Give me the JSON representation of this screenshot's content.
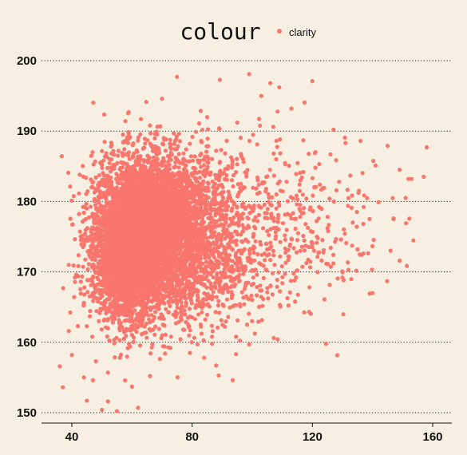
{
  "chart_data": {
    "type": "scatter",
    "title": "",
    "xlabel": "",
    "ylabel": "",
    "xlim": [
      33,
      166
    ],
    "ylim": [
      149.2,
      201.6
    ],
    "x_ticks": [
      40,
      80,
      120,
      160
    ],
    "y_ticks": [
      150,
      160,
      170,
      180,
      190,
      200
    ],
    "grid": {
      "horizontal": "dotted",
      "vertical": "none"
    },
    "legend": {
      "title": "colour",
      "placement": "top-center",
      "entries": [
        "clarity"
      ]
    },
    "series": [
      {
        "name": "clarity",
        "color": "#f8766d",
        "points": [
          [
            37,
            153.6
          ],
          [
            36,
            156.6
          ],
          [
            40,
            158.2
          ],
          [
            45,
            151.7
          ],
          [
            50,
            150.4
          ],
          [
            52,
            151.6
          ],
          [
            55,
            150.2
          ],
          [
            62,
            150.7
          ],
          [
            42,
            162.3
          ],
          [
            39,
            161.6
          ],
          [
            44,
            155.0
          ],
          [
            47,
            154.6
          ],
          [
            48,
            157.3
          ],
          [
            52,
            155.7
          ],
          [
            56,
            157.8
          ],
          [
            60,
            153.7
          ],
          [
            66,
            155.2
          ],
          [
            71,
            158.4
          ],
          [
            84,
            157.8
          ],
          [
            88,
            156.7
          ],
          [
            99,
            159.7
          ],
          [
            41,
            169.2
          ],
          [
            43,
            168.6
          ],
          [
            39,
            171.0
          ],
          [
            43,
            174.5
          ],
          [
            44,
            177.3
          ],
          [
            45,
            179.0
          ],
          [
            48,
            183.4
          ],
          [
            50,
            185.2
          ],
          [
            53,
            187.8
          ],
          [
            57,
            189.5
          ],
          [
            63,
            191.7
          ],
          [
            66,
            190.8
          ],
          [
            70,
            194.6
          ],
          [
            75,
            197.7
          ],
          [
            85,
            192.0
          ],
          [
            89,
            190.4
          ],
          [
            95,
            191.2
          ],
          [
            99,
            198.1
          ],
          [
            103,
            195.0
          ],
          [
            106,
            196.8
          ],
          [
            109,
            196.2
          ],
          [
            120,
            197.1
          ],
          [
            107,
            190.6
          ],
          [
            113,
            193.2
          ],
          [
            117,
            188.7
          ],
          [
            121,
            187.0
          ],
          [
            127,
            190.2
          ],
          [
            131,
            188.3
          ],
          [
            136,
            188.6
          ],
          [
            141,
            185.1
          ],
          [
            145,
            187.9
          ],
          [
            149,
            184.5
          ],
          [
            153,
            183.2
          ],
          [
            158,
            187.7
          ],
          [
            157,
            183.5
          ],
          [
            151,
            180.5
          ],
          [
            147,
            177.5
          ],
          [
            142,
            179.9
          ],
          [
            139,
            177.5
          ],
          [
            135,
            173.2
          ],
          [
            132,
            170.3
          ],
          [
            130,
            169.2
          ],
          [
            127,
            171.2
          ],
          [
            124,
            166.1
          ],
          [
            140,
            167.0
          ],
          [
            146,
            173.0
          ],
          [
            149,
            171.6
          ],
          [
            119,
            167.8
          ],
          [
            115,
            170.2
          ],
          [
            110,
            168.4
          ],
          [
            105,
            167.1
          ],
          [
            100,
            166.0
          ],
          [
            96,
            165.1
          ],
          [
            92,
            163.6
          ],
          [
            89,
            164.2
          ],
          [
            85,
            163.9
          ],
          [
            81,
            163.3
          ],
          [
            77,
            161.8
          ],
          [
            73,
            160.8
          ],
          [
            69,
            161.9
          ],
          [
            64,
            161.3
          ],
          [
            60,
            162.1
          ],
          [
            56,
            161.7
          ],
          [
            52,
            162.0
          ],
          [
            49,
            163.0
          ],
          [
            46,
            163.7
          ],
          [
            44,
            165.6
          ],
          [
            43,
            166.9
          ],
          [
            95,
            178.4
          ],
          [
            101,
            176.2
          ],
          [
            108,
            179.0
          ],
          [
            113,
            177.6
          ],
          [
            118,
            180.4
          ],
          [
            123,
            179.0
          ],
          [
            128,
            181.6
          ],
          [
            125,
            176.2
          ],
          [
            120,
            174.0
          ],
          [
            112,
            172.2
          ],
          [
            106,
            171.7
          ],
          [
            97,
            173.0
          ],
          [
            93,
            176.8
          ],
          [
            90,
            181.3
          ],
          [
            92,
            185.0
          ],
          [
            98,
            184.0
          ],
          [
            104,
            182.7
          ],
          [
            111,
            185.3
          ],
          [
            116,
            183.0
          ],
          [
            121,
            184.8
          ],
          [
            88,
            187.2
          ],
          [
            83,
            188.6
          ],
          [
            78,
            187.4
          ],
          [
            73,
            188.1
          ],
          [
            68,
            186.9
          ],
          [
            62,
            186.2
          ],
          [
            57,
            184.1
          ],
          [
            52,
            181.1
          ],
          [
            48,
            176.1
          ],
          [
            47,
            171.0
          ],
          [
            48,
            167.2
          ],
          [
            51,
            165.0
          ],
          [
            55,
            164.1
          ],
          [
            59,
            165.3
          ]
        ],
        "dense_clusters": [
          {
            "cx": 62,
            "cy": 175.5,
            "sx": 7.5,
            "sy": 5.2,
            "n": 3200
          },
          {
            "cx": 58,
            "cy": 171.5,
            "sx": 5.0,
            "sy": 4.0,
            "n": 1500
          },
          {
            "cx": 72,
            "cy": 178.0,
            "sx": 9.0,
            "sy": 4.5,
            "n": 1400
          },
          {
            "cx": 76,
            "cy": 172.5,
            "sx": 11.0,
            "sy": 5.5,
            "n": 1100
          },
          {
            "cx": 92,
            "cy": 175.5,
            "sx": 16.0,
            "sy": 6.8,
            "n": 520
          },
          {
            "cx": 115,
            "cy": 178.0,
            "sx": 15.0,
            "sy": 6.0,
            "n": 160
          }
        ]
      }
    ]
  }
}
